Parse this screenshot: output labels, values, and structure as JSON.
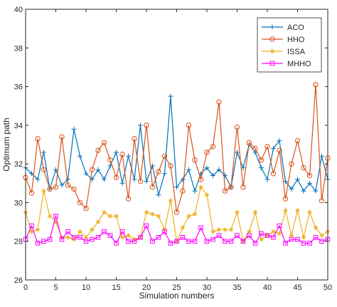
{
  "chart_data": {
    "type": "line",
    "title": "",
    "xlabel": "Simulation numbers",
    "ylabel": "Optimum path",
    "xlim": [
      0,
      50
    ],
    "ylim": [
      26,
      40
    ],
    "xticks": [
      0,
      5,
      10,
      15,
      20,
      25,
      30,
      35,
      40,
      45,
      50
    ],
    "yticks": [
      26,
      28,
      30,
      32,
      34,
      36,
      38,
      40
    ],
    "grid": false,
    "legend_position": "top-right",
    "x": [
      0,
      1,
      2,
      3,
      4,
      5,
      6,
      7,
      8,
      9,
      10,
      11,
      12,
      13,
      14,
      15,
      16,
      17,
      18,
      19,
      20,
      21,
      22,
      23,
      24,
      25,
      26,
      27,
      28,
      29,
      30,
      31,
      32,
      33,
      34,
      35,
      36,
      37,
      38,
      39,
      40,
      41,
      42,
      43,
      44,
      45,
      46,
      47,
      48,
      49,
      50
    ],
    "series": [
      {
        "name": "ACO",
        "color": "#0072BD",
        "marker": "plus",
        "values": [
          31.8,
          31.5,
          31.2,
          32.6,
          30.7,
          31.7,
          30.9,
          31.2,
          33.8,
          32.4,
          31.5,
          31.2,
          31.7,
          31.2,
          31.9,
          32.6,
          31.0,
          32.4,
          31.2,
          34.0,
          31.1,
          31.9,
          30.4,
          31.5,
          35.5,
          30.8,
          31.2,
          31.7,
          30.6,
          31.5,
          31.8,
          31.4,
          31.7,
          31.4,
          30.8,
          32.6,
          31.8,
          33.0,
          32.6,
          31.8,
          31.2,
          32.8,
          33.2,
          31.1,
          30.7,
          31.2,
          30.6,
          31.0,
          30.6,
          32.4,
          31.2
        ]
      },
      {
        "name": "HHO",
        "color": "#D95319",
        "marker": "circle",
        "values": [
          31.3,
          30.5,
          33.3,
          31.7,
          30.7,
          30.8,
          33.4,
          30.9,
          30.7,
          30.0,
          29.7,
          31.7,
          32.7,
          33.1,
          32.2,
          31.3,
          32.5,
          30.2,
          33.3,
          31.1,
          34.0,
          30.8,
          31.6,
          32.4,
          31.9,
          29.5,
          30.6,
          34.0,
          32.2,
          31.2,
          32.6,
          32.9,
          35.2,
          30.6,
          30.8,
          33.9,
          30.8,
          33.1,
          32.8,
          32.2,
          32.9,
          31.5,
          32.7,
          30.2,
          32.0,
          33.2,
          31.8,
          31.4,
          36.1,
          30.1,
          32.3
        ]
      },
      {
        "name": "ISSA",
        "color": "#EDB120",
        "marker": "star",
        "values": [
          29.5,
          28.5,
          28.6,
          30.6,
          29.3,
          29.0,
          28.2,
          28.2,
          28.1,
          28.5,
          28.2,
          28.6,
          29.0,
          29.5,
          29.3,
          29.3,
          28.2,
          28.3,
          28.1,
          28.2,
          29.5,
          29.4,
          29.3,
          28.6,
          30.1,
          28.0,
          28.7,
          29.3,
          29.4,
          30.8,
          30.4,
          28.5,
          28.6,
          28.6,
          28.6,
          29.5,
          28.0,
          28.5,
          29.5,
          28.1,
          28.3,
          28.5,
          28.4,
          29.6,
          28.3,
          29.6,
          28.2,
          29.5,
          28.7,
          28.3,
          28.5
        ]
      },
      {
        "name": "MHHO",
        "color": "#FF00FF",
        "marker": "square",
        "values": [
          28.1,
          28.8,
          27.9,
          28.0,
          28.1,
          29.3,
          28.1,
          28.5,
          28.2,
          28.2,
          28.0,
          28.1,
          28.2,
          28.5,
          28.3,
          27.9,
          28.5,
          28.0,
          28.0,
          28.2,
          28.8,
          28.0,
          28.2,
          28.5,
          27.9,
          28.0,
          28.2,
          28.0,
          28.0,
          28.7,
          28.0,
          28.1,
          28.3,
          28.0,
          28.0,
          28.3,
          28.0,
          28.3,
          27.9,
          28.4,
          28.3,
          28.2,
          28.8,
          27.9,
          28.1,
          28.1,
          27.9,
          27.9,
          28.2,
          28.0,
          28.1
        ]
      }
    ]
  }
}
